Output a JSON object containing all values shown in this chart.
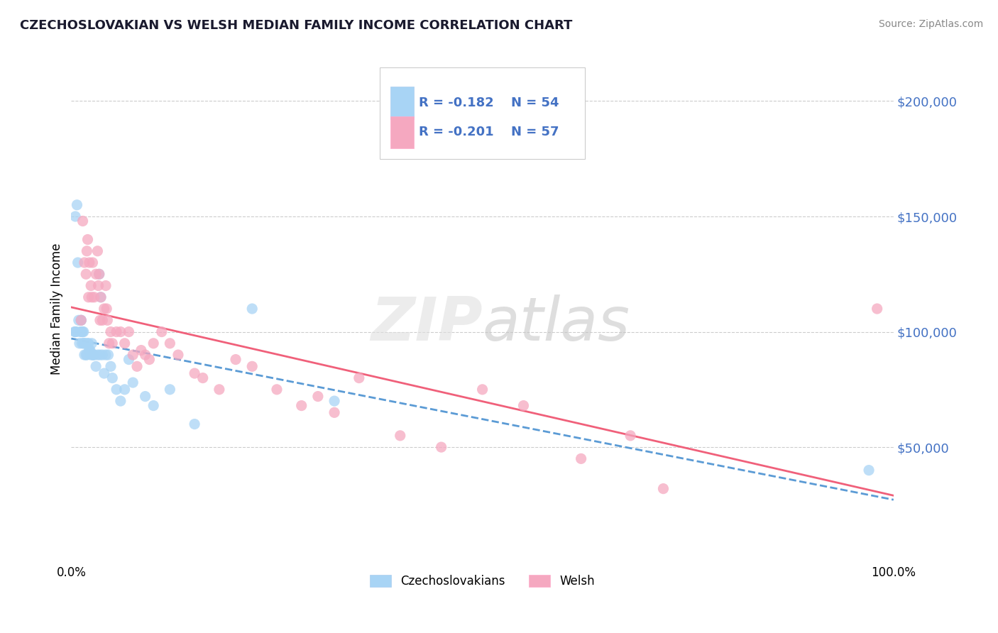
{
  "title": "CZECHOSLOVAKIAN VS WELSH MEDIAN FAMILY INCOME CORRELATION CHART",
  "source": "Source: ZipAtlas.com",
  "ylabel": "Median Family Income",
  "xmin": 0.0,
  "xmax": 1.0,
  "ymin": 0,
  "ymax": 220000,
  "legend_r1": "-0.182",
  "legend_n1": "54",
  "legend_r2": "-0.201",
  "legend_n2": "57",
  "legend_label1": "Czechoslovakians",
  "legend_label2": "Welsh",
  "color_czech": "#A8D4F5",
  "color_welsh": "#F5A8C0",
  "color_czech_line": "#5B9BD5",
  "color_welsh_line": "#F0607A",
  "ytick_color": "#4472C4",
  "czech_x": [
    0.004,
    0.005,
    0.005,
    0.006,
    0.007,
    0.008,
    0.009,
    0.01,
    0.011,
    0.012,
    0.012,
    0.013,
    0.013,
    0.014,
    0.015,
    0.015,
    0.016,
    0.016,
    0.017,
    0.018,
    0.019,
    0.02,
    0.021,
    0.022,
    0.022,
    0.023,
    0.024,
    0.025,
    0.026,
    0.027,
    0.028,
    0.03,
    0.032,
    0.034,
    0.035,
    0.036,
    0.038,
    0.04,
    0.042,
    0.045,
    0.048,
    0.05,
    0.055,
    0.06,
    0.065,
    0.07,
    0.075,
    0.09,
    0.1,
    0.12,
    0.15,
    0.22,
    0.32,
    0.97
  ],
  "czech_y": [
    100000,
    150000,
    100000,
    100000,
    155000,
    130000,
    105000,
    95000,
    100000,
    105000,
    105000,
    100000,
    95000,
    100000,
    100000,
    95000,
    90000,
    95000,
    95000,
    90000,
    90000,
    95000,
    95000,
    92000,
    92000,
    92000,
    90000,
    95000,
    90000,
    90000,
    90000,
    85000,
    90000,
    125000,
    90000,
    115000,
    90000,
    82000,
    90000,
    90000,
    85000,
    80000,
    75000,
    70000,
    75000,
    88000,
    78000,
    72000,
    68000,
    75000,
    60000,
    110000,
    70000,
    40000
  ],
  "welsh_x": [
    0.012,
    0.014,
    0.016,
    0.018,
    0.019,
    0.02,
    0.021,
    0.022,
    0.024,
    0.025,
    0.026,
    0.028,
    0.03,
    0.032,
    0.033,
    0.034,
    0.035,
    0.036,
    0.038,
    0.04,
    0.042,
    0.043,
    0.044,
    0.046,
    0.048,
    0.05,
    0.055,
    0.06,
    0.065,
    0.07,
    0.075,
    0.08,
    0.085,
    0.09,
    0.095,
    0.1,
    0.11,
    0.12,
    0.13,
    0.15,
    0.16,
    0.18,
    0.2,
    0.22,
    0.25,
    0.28,
    0.3,
    0.32,
    0.35,
    0.4,
    0.45,
    0.5,
    0.55,
    0.62,
    0.68,
    0.72,
    0.98
  ],
  "welsh_y": [
    105000,
    148000,
    130000,
    125000,
    135000,
    140000,
    115000,
    130000,
    120000,
    115000,
    130000,
    115000,
    125000,
    135000,
    120000,
    125000,
    105000,
    115000,
    105000,
    110000,
    120000,
    110000,
    105000,
    95000,
    100000,
    95000,
    100000,
    100000,
    95000,
    100000,
    90000,
    85000,
    92000,
    90000,
    88000,
    95000,
    100000,
    95000,
    90000,
    82000,
    80000,
    75000,
    88000,
    85000,
    75000,
    68000,
    72000,
    65000,
    80000,
    55000,
    50000,
    75000,
    68000,
    45000,
    55000,
    32000,
    110000
  ]
}
